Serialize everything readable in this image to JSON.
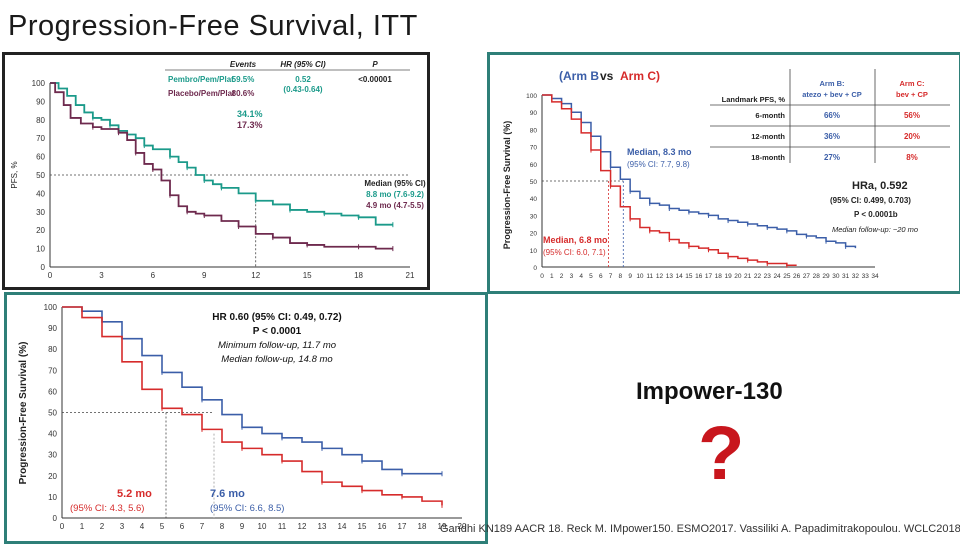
{
  "slide": {
    "title": "Progression-Free Survival, ITT",
    "impower_label": "Impower-130",
    "question_mark": "?",
    "citation": "Gandhi KN189 AACR 18. Reck M. IMpower150. ESMO2017. Vassiliki A. Papadimitrakopoulou. WCLC2018"
  },
  "colors": {
    "teal": "#1b9a8a",
    "maroon": "#6e2a4e",
    "blue": "#3b5ea8",
    "red": "#d62b2b",
    "panel_border": "#2e7f78"
  },
  "chart_data": [
    {
      "type": "line",
      "title": "",
      "xlabel": "",
      "ylabel": "PFS, %",
      "xlim": [
        0,
        21
      ],
      "ylim": [
        0,
        100
      ],
      "xticks": [
        "0",
        "3",
        "6",
        "9",
        "12",
        "15",
        "18",
        "21"
      ],
      "yticks": [
        "0",
        "10",
        "20",
        "30",
        "40",
        "50",
        "60",
        "70",
        "80",
        "90",
        "100"
      ],
      "grid": false,
      "table": {
        "headers": [
          "",
          "Events",
          "HR (95% CI)",
          "P"
        ],
        "rows": [
          {
            "label": "Pembro/Pem/Plat",
            "events": "59.5%",
            "hr": "0.52",
            "ci": "(0.43-0.64)",
            "p": "<0.00001"
          },
          {
            "label": "Placebo/Pem/Plat",
            "events": "80.6%",
            "hr": "",
            "ci": "",
            "p": ""
          }
        ]
      },
      "annotations": [
        "34.1%",
        "17.3%"
      ],
      "median_header": "Median (95% CI)",
      "medians": [
        "8.8 mo (7.6-9.2)",
        "4.9 mo (4.7-5.5)"
      ],
      "series": [
        {
          "color": "#1b9a8a",
          "points": [
            [
              0,
              100
            ],
            [
              0.5,
              97
            ],
            [
              1,
              93
            ],
            [
              1.5,
              88
            ],
            [
              2,
              84
            ],
            [
              2.5,
              81
            ],
            [
              3,
              80
            ],
            [
              3.5,
              77
            ],
            [
              4,
              74
            ],
            [
              4.5,
              72
            ],
            [
              5,
              70
            ],
            [
              5.5,
              66
            ],
            [
              6,
              64
            ],
            [
              7,
              60
            ],
            [
              7.5,
              57
            ],
            [
              8,
              54
            ],
            [
              8.5,
              50
            ],
            [
              9,
              47
            ],
            [
              9.5,
              45
            ],
            [
              10,
              43
            ],
            [
              11,
              40
            ],
            [
              12,
              36
            ],
            [
              13,
              34
            ],
            [
              14,
              31
            ],
            [
              15,
              30
            ],
            [
              16,
              29
            ],
            [
              17,
              28
            ],
            [
              18,
              27
            ],
            [
              19,
              23
            ],
            [
              20,
              23
            ]
          ]
        },
        {
          "color": "#6e2a4e",
          "points": [
            [
              0,
              100
            ],
            [
              0.3,
              95
            ],
            [
              0.8,
              88
            ],
            [
              1.2,
              81
            ],
            [
              1.8,
              78
            ],
            [
              2.5,
              76
            ],
            [
              3,
              75
            ],
            [
              4,
              73
            ],
            [
              4.5,
              69
            ],
            [
              5,
              62
            ],
            [
              5.5,
              56
            ],
            [
              6,
              53
            ],
            [
              6.5,
              47
            ],
            [
              7,
              39
            ],
            [
              7.5,
              33
            ],
            [
              8,
              30
            ],
            [
              8.5,
              29
            ],
            [
              9,
              28
            ],
            [
              10,
              25
            ],
            [
              11,
              22
            ],
            [
              12,
              18
            ],
            [
              13,
              16
            ],
            [
              14,
              13
            ],
            [
              15,
              12
            ],
            [
              16,
              11
            ],
            [
              18,
              11
            ],
            [
              19,
              10
            ],
            [
              20,
              10
            ]
          ]
        }
      ]
    },
    {
      "type": "line",
      "title": "",
      "title_parts": [
        "(Arm B",
        "vs",
        "Arm C)"
      ],
      "xlabel": "",
      "ylabel": "Progression-Free Survival (%)",
      "xlim": [
        0,
        34
      ],
      "ylim": [
        0,
        100
      ],
      "xticks": [
        "0",
        "1",
        "2",
        "3",
        "4",
        "5",
        "6",
        "7",
        "8",
        "9",
        "10",
        "11",
        "12",
        "13",
        "14",
        "15",
        "16",
        "17",
        "18",
        "19",
        "20",
        "21",
        "22",
        "23",
        "24",
        "25",
        "26",
        "27",
        "28",
        "29",
        "30",
        "31",
        "32",
        "33",
        "34"
      ],
      "yticks": [
        "0",
        "10",
        "20",
        "30",
        "40",
        "50",
        "60",
        "70",
        "80",
        "90",
        "100"
      ],
      "grid": false,
      "landmark_table": {
        "header_col": "Landmark PFS, %",
        "arm_b_header": [
          "Arm B:",
          "atezo + bev + CP"
        ],
        "arm_c_header": [
          "Arm C:",
          "bev + CP"
        ],
        "rows": [
          {
            "label": "6-month",
            "arm_b": "66%",
            "arm_c": "56%"
          },
          {
            "label": "12-month",
            "arm_b": "36%",
            "arm_c": "20%"
          },
          {
            "label": "18-month",
            "arm_b": "27%",
            "arm_c": "8%"
          }
        ]
      },
      "median_b": [
        "Median, 8.3 mo",
        "(95% CI: 7.7, 9.8)"
      ],
      "median_c": [
        "Median, 6.8 mo",
        "(95% CI: 6.0, 7.1)"
      ],
      "hr": [
        "HRa, 0.592",
        "(95% CI: 0.499, 0.703)",
        "P < 0.0001b",
        "Median follow-up: ~20 mo"
      ],
      "series": [
        {
          "color": "#3b5ea8",
          "points": [
            [
              0,
              100
            ],
            [
              1,
              98
            ],
            [
              2,
              95
            ],
            [
              3,
              90
            ],
            [
              4,
              84
            ],
            [
              5,
              76
            ],
            [
              6,
              67
            ],
            [
              7,
              58
            ],
            [
              8,
              51
            ],
            [
              9,
              44
            ],
            [
              10,
              40
            ],
            [
              11,
              37
            ],
            [
              12,
              36
            ],
            [
              13,
              34
            ],
            [
              14,
              33
            ],
            [
              15,
              32
            ],
            [
              16,
              31
            ],
            [
              17,
              30
            ],
            [
              18,
              28
            ],
            [
              19,
              27
            ],
            [
              20,
              26
            ],
            [
              21,
              25
            ],
            [
              22,
              24
            ],
            [
              23,
              23
            ],
            [
              24,
              22
            ],
            [
              25,
              21
            ],
            [
              26,
              19
            ],
            [
              27,
              18
            ],
            [
              28,
              17
            ],
            [
              29,
              15
            ],
            [
              30,
              14
            ],
            [
              31,
              12
            ],
            [
              32,
              11
            ]
          ]
        },
        {
          "color": "#d62b2b",
          "points": [
            [
              0,
              100
            ],
            [
              1,
              96
            ],
            [
              2,
              92
            ],
            [
              3,
              86
            ],
            [
              4,
              78
            ],
            [
              5,
              68
            ],
            [
              6,
              56
            ],
            [
              7,
              47
            ],
            [
              8,
              35
            ],
            [
              9,
              28
            ],
            [
              10,
              23
            ],
            [
              11,
              21
            ],
            [
              12,
              20
            ],
            [
              13,
              16
            ],
            [
              14,
              14
            ],
            [
              15,
              12
            ],
            [
              16,
              11
            ],
            [
              17,
              10
            ],
            [
              18,
              8
            ],
            [
              19,
              6
            ],
            [
              20,
              5
            ],
            [
              21,
              4
            ],
            [
              22,
              3
            ],
            [
              23,
              2
            ],
            [
              24,
              2
            ],
            [
              25,
              1
            ],
            [
              26,
              1
            ]
          ]
        }
      ]
    },
    {
      "type": "line",
      "title": "",
      "xlabel": "",
      "ylabel": "Progression-Free Survival (%)",
      "xlim": [
        0,
        20
      ],
      "ylim": [
        0,
        100
      ],
      "xticks": [
        "0",
        "1",
        "2",
        "3",
        "4",
        "5",
        "6",
        "7",
        "8",
        "9",
        "10",
        "11",
        "12",
        "13",
        "14",
        "15",
        "16",
        "17",
        "18",
        "19",
        "20"
      ],
      "yticks": [
        "0",
        "10",
        "20",
        "30",
        "40",
        "50",
        "60",
        "70",
        "80",
        "90",
        "100"
      ],
      "grid": false,
      "hr_lines": [
        "HR 0.60 (95% CI: 0.49, 0.72)",
        "P < 0.0001",
        "Minimum follow-up, 11.7 mo",
        "Median follow-up, 14.8 mo"
      ],
      "median_red": [
        "5.2 mo",
        "(95% CI: 4.3, 5.6)"
      ],
      "median_blue": [
        "7.6 mo",
        "(95% CI: 6.6, 8.5)"
      ],
      "series": [
        {
          "color": "#3b5ea8",
          "points": [
            [
              0,
              100
            ],
            [
              1,
              98
            ],
            [
              2,
              93
            ],
            [
              3,
              85
            ],
            [
              4,
              77
            ],
            [
              5,
              69
            ],
            [
              6,
              62
            ],
            [
              7,
              56
            ],
            [
              8,
              49
            ],
            [
              9,
              43
            ],
            [
              10,
              40
            ],
            [
              11,
              38
            ],
            [
              12,
              36
            ],
            [
              13,
              33
            ],
            [
              14,
              30
            ],
            [
              15,
              27
            ],
            [
              16,
              23
            ],
            [
              17,
              21
            ],
            [
              18,
              21
            ],
            [
              19,
              21
            ]
          ]
        },
        {
          "color": "#d62b2b",
          "points": [
            [
              0,
              100
            ],
            [
              1,
              95
            ],
            [
              2,
              86
            ],
            [
              3,
              74
            ],
            [
              4,
              61
            ],
            [
              5,
              52
            ],
            [
              6,
              49
            ],
            [
              7,
              42
            ],
            [
              8,
              36
            ],
            [
              9,
              33
            ],
            [
              10,
              30
            ],
            [
              11,
              27
            ],
            [
              12,
              22
            ],
            [
              13,
              17
            ],
            [
              14,
              15
            ],
            [
              15,
              13
            ],
            [
              16,
              11
            ],
            [
              17,
              10
            ],
            [
              18,
              8
            ],
            [
              19,
              6
            ]
          ]
        }
      ]
    }
  ]
}
